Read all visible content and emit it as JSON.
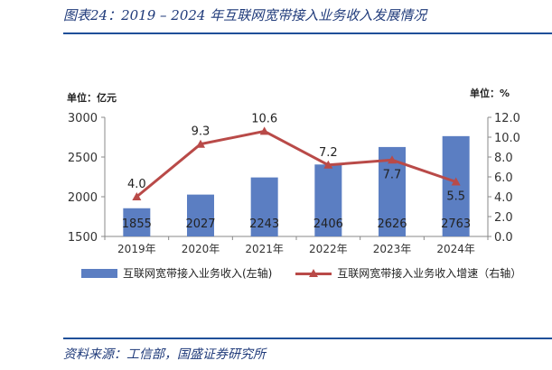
{
  "header": {
    "title": "图表24：2019 – 2024 年互联网宽带接入业务收入发展情况"
  },
  "footer": {
    "source": "资料来源：工信部，国盛证券研究所"
  },
  "chart_data": {
    "type": "bar+line",
    "categories": [
      "2019年",
      "2020年",
      "2021年",
      "2022年",
      "2023年",
      "2024年"
    ],
    "series": [
      {
        "name": "互联网宽带接入业务收入(左轴)",
        "type": "bar",
        "axis": "left",
        "values": [
          1855,
          2027,
          2243,
          2406,
          2626,
          2763
        ],
        "color": "#5b7ec2"
      },
      {
        "name": "互联网宽带接入业务收入增速（右轴）",
        "type": "line",
        "axis": "right",
        "values": [
          4.0,
          9.3,
          10.6,
          7.2,
          7.7,
          5.5
        ],
        "color": "#b94a48"
      }
    ],
    "left_axis": {
      "unit_label": "单位：亿元",
      "ylim": [
        1500,
        3000
      ],
      "ticks": [
        "1500",
        "2000",
        "2500",
        "3000"
      ]
    },
    "right_axis": {
      "unit_label": "单位：%",
      "ylim": [
        0,
        12
      ],
      "ticks": [
        "0.0",
        "2.0",
        "4.0",
        "6.0",
        "8.0",
        "10.0",
        "12.0"
      ]
    },
    "grid": false,
    "legend": "bottom"
  }
}
